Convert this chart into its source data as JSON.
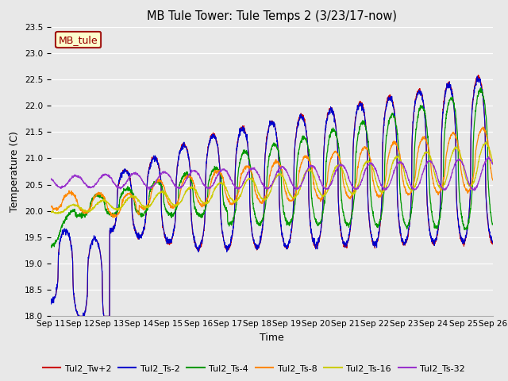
{
  "title": "MB Tule Tower: Tule Temps 2 (3/23/17-now)",
  "xlabel": "Time",
  "ylabel": "Temperature (C)",
  "ylim": [
    18.0,
    23.5
  ],
  "yticks": [
    18.0,
    18.5,
    19.0,
    19.5,
    20.0,
    20.5,
    21.0,
    21.5,
    22.0,
    22.5,
    23.0,
    23.5
  ],
  "xtick_labels": [
    "Sep 11",
    "Sep 12",
    "Sep 13",
    "Sep 14",
    "Sep 15",
    "Sep 16",
    "Sep 17",
    "Sep 18",
    "Sep 19",
    "Sep 20",
    "Sep 21",
    "Sep 22",
    "Sep 23",
    "Sep 24",
    "Sep 25",
    "Sep 26"
  ],
  "legend_label": "MB_tule",
  "legend_bg": "#ffffcc",
  "legend_edge": "#990000",
  "bg_color": "#e8e8e8",
  "grid_color": "#ffffff",
  "series": [
    {
      "label": "Tul2_Tw+2",
      "color": "#cc0000"
    },
    {
      "label": "Tul2_Ts-2",
      "color": "#0000cc"
    },
    {
      "label": "Tul2_Ts-4",
      "color": "#009900"
    },
    {
      "label": "Tul2_Ts-8",
      "color": "#ff8800"
    },
    {
      "label": "Tul2_Ts-16",
      "color": "#cccc00"
    },
    {
      "label": "Tul2_Ts-32",
      "color": "#9933cc"
    }
  ]
}
